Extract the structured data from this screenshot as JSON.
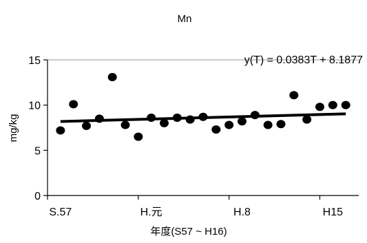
{
  "chart_data": {
    "type": "scatter",
    "title": "Mn",
    "xlabel": "年度(S57 ~ H16)",
    "ylabel": "mg/kg",
    "xlim": [
      1981,
      2005
    ],
    "ylim": [
      0,
      15
    ],
    "x_ticks": [
      {
        "x": 1982,
        "label": "S.57"
      },
      {
        "x": 1989,
        "label": "H.元"
      },
      {
        "x": 1996,
        "label": "H.8"
      },
      {
        "x": 2003,
        "label": "H15"
      }
    ],
    "y_ticks": [
      0,
      5,
      10,
      15
    ],
    "gridlines": [
      15
    ],
    "series": [
      {
        "x": [
          1982,
          1983,
          1984,
          1985,
          1986,
          1987,
          1988,
          1989,
          1990,
          1991,
          1992,
          1993,
          1994,
          1995,
          1996,
          1997,
          1998,
          1999,
          2000,
          2001,
          2002,
          2003,
          2004
        ],
        "y": [
          7.2,
          10.1,
          7.7,
          8.5,
          13.1,
          7.8,
          6.5,
          8.6,
          8.0,
          8.6,
          8.4,
          8.7,
          7.3,
          7.8,
          8.2,
          8.9,
          7.8,
          7.9,
          11.1,
          8.4,
          9.8,
          10.0,
          10.0
        ]
      }
    ],
    "trendline": {
      "equation": "y(T) = 0.0383T + 8.1877",
      "slope": 0.0383,
      "intercept": 8.1877,
      "t_start": 0,
      "t_end": 22
    }
  }
}
